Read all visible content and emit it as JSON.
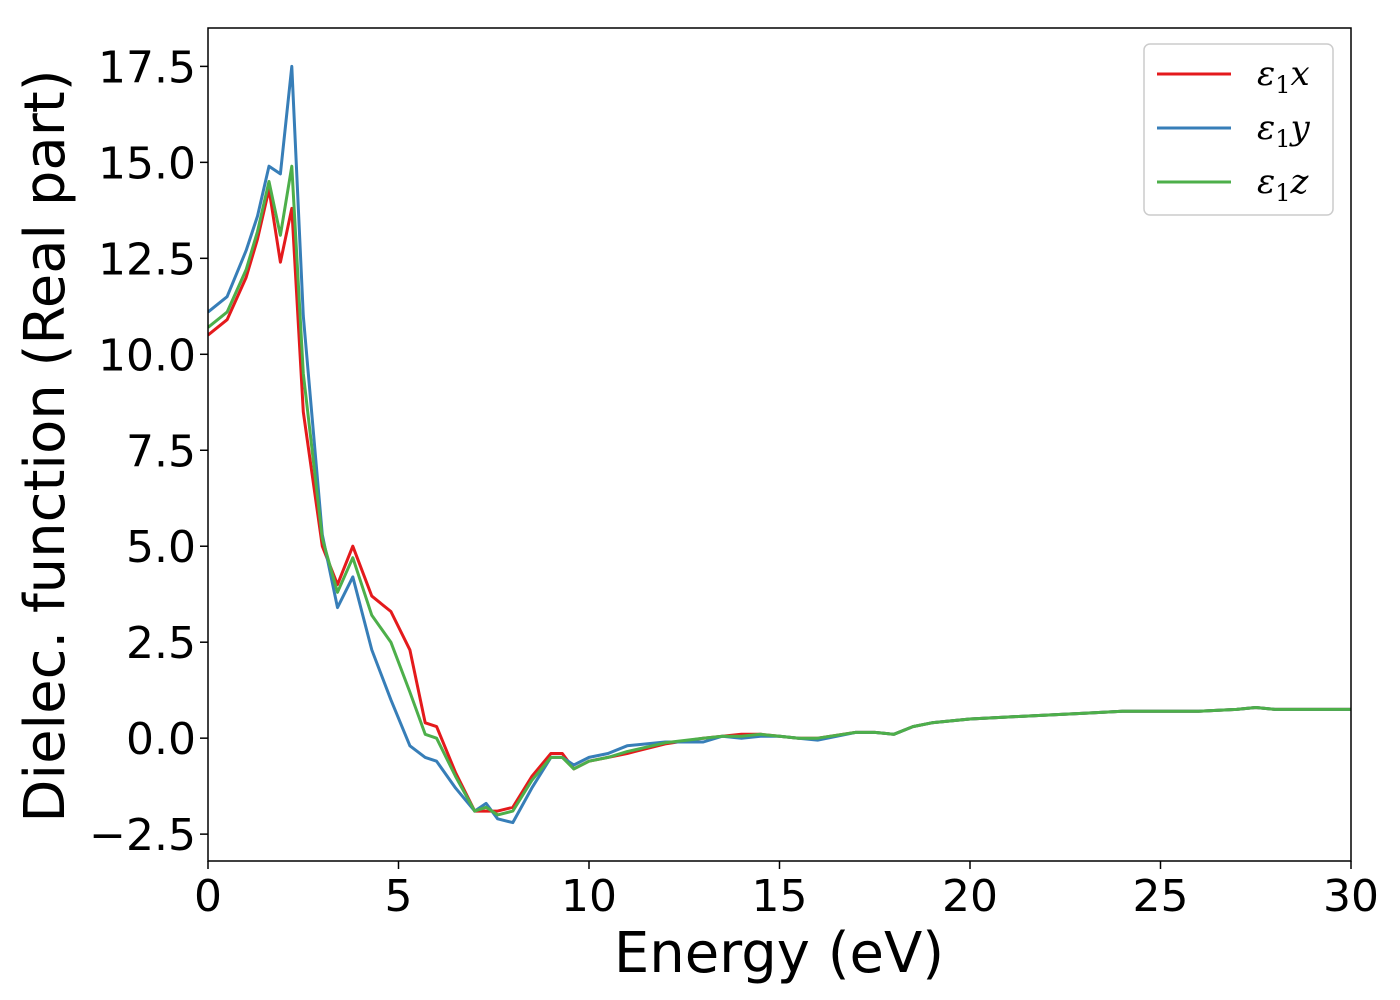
{
  "chart_data": {
    "type": "line",
    "title": "",
    "xlabel": "Energy (eV)",
    "ylabel": "Dielec. function (Real part)",
    "xlim": [
      0,
      30
    ],
    "ylim": [
      -3.2,
      18.5
    ],
    "xticks": [
      0,
      5,
      10,
      15,
      20,
      25,
      30
    ],
    "xtick_labels": [
      "0",
      "5",
      "10",
      "15",
      "20",
      "25",
      "30"
    ],
    "yticks": [
      -2.5,
      0,
      2.5,
      5,
      7.5,
      10,
      12.5,
      15,
      17.5
    ],
    "ytick_labels": [
      "−2.5",
      "0.0",
      "2.5",
      "5.0",
      "7.5",
      "10.0",
      "12.5",
      "15.0",
      "17.5"
    ],
    "grid": false,
    "legend_position": "top-right",
    "x": [
      0,
      0.5,
      1.0,
      1.3,
      1.6,
      1.9,
      2.2,
      2.5,
      3.0,
      3.4,
      3.8,
      4.3,
      4.8,
      5.3,
      5.7,
      6.0,
      6.5,
      7.0,
      7.3,
      7.6,
      8.0,
      8.5,
      9.0,
      9.3,
      9.6,
      10.0,
      10.5,
      11.0,
      12.0,
      13.0,
      13.5,
      14.0,
      14.5,
      15.0,
      15.5,
      16.0,
      17.0,
      17.5,
      18.0,
      18.5,
      19.0,
      20.0,
      21.0,
      22.0,
      23.0,
      24.0,
      25.0,
      26.0,
      27.0,
      27.5,
      28.0,
      29.0,
      30.0
    ],
    "series": [
      {
        "name": "ε₁x",
        "color": "#e41a1c",
        "values": [
          10.5,
          10.9,
          12.0,
          13.0,
          14.3,
          12.4,
          13.8,
          8.5,
          5.0,
          4.0,
          5.0,
          3.7,
          3.3,
          2.3,
          0.4,
          0.3,
          -0.9,
          -1.9,
          -1.9,
          -1.9,
          -1.8,
          -1.0,
          -0.4,
          -0.4,
          -0.8,
          -0.6,
          -0.5,
          -0.4,
          -0.15,
          0.0,
          0.05,
          0.1,
          0.1,
          0.05,
          0.0,
          0.0,
          0.15,
          0.15,
          0.1,
          0.3,
          0.4,
          0.5,
          0.55,
          0.6,
          0.65,
          0.7,
          0.7,
          0.7,
          0.75,
          0.8,
          0.75,
          0.75,
          0.75
        ]
      },
      {
        "name": "ε₁y",
        "color": "#377eb8",
        "values": [
          11.1,
          11.5,
          12.7,
          13.6,
          14.9,
          14.7,
          17.5,
          11.0,
          5.3,
          3.4,
          4.2,
          2.3,
          1.0,
          -0.2,
          -0.5,
          -0.6,
          -1.3,
          -1.9,
          -1.7,
          -2.1,
          -2.2,
          -1.3,
          -0.5,
          -0.5,
          -0.7,
          -0.5,
          -0.4,
          -0.2,
          -0.1,
          -0.1,
          0.05,
          0.0,
          0.05,
          0.05,
          0.0,
          -0.05,
          0.15,
          0.15,
          0.1,
          0.3,
          0.4,
          0.5,
          0.55,
          0.6,
          0.65,
          0.7,
          0.7,
          0.7,
          0.75,
          0.8,
          0.75,
          0.75,
          0.75
        ]
      },
      {
        "name": "ε₁z",
        "color": "#4daf4a",
        "values": [
          10.7,
          11.1,
          12.2,
          13.2,
          14.5,
          13.1,
          14.9,
          9.5,
          5.2,
          3.8,
          4.7,
          3.2,
          2.5,
          1.2,
          0.1,
          0.0,
          -1.0,
          -1.9,
          -1.8,
          -2.0,
          -1.9,
          -1.1,
          -0.5,
          -0.5,
          -0.8,
          -0.6,
          -0.5,
          -0.35,
          -0.12,
          0.0,
          0.05,
          0.05,
          0.1,
          0.05,
          0.0,
          0.0,
          0.15,
          0.15,
          0.1,
          0.3,
          0.4,
          0.5,
          0.55,
          0.6,
          0.65,
          0.7,
          0.7,
          0.7,
          0.75,
          0.8,
          0.75,
          0.75,
          0.75
        ]
      }
    ],
    "legend": [
      {
        "symbol": "ε",
        "sub": "1",
        "axis": "x"
      },
      {
        "symbol": "ε",
        "sub": "1",
        "axis": "y"
      },
      {
        "symbol": "ε",
        "sub": "1",
        "axis": "z"
      }
    ]
  }
}
